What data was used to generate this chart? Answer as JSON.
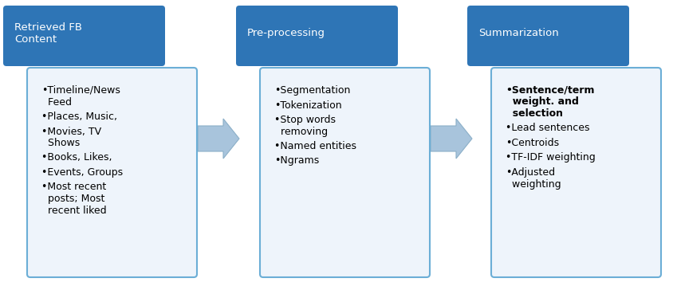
{
  "background_color": "#ffffff",
  "header_color": "#2E75B6",
  "header_text_color": "#ffffff",
  "body_bg_color": "#EEF4FB",
  "body_border_color": "#6BAED6",
  "body_text_color": "#000000",
  "arrow_color": "#A8C4DC",
  "figure_width": 8.45,
  "figure_height": 3.59,
  "boxes": [
    {
      "title": "Retrieved FB\nContent",
      "items": [
        [
          "•Timeline/News",
          "  Feed"
        ],
        [
          "•Places, Music,"
        ],
        [
          "•Movies, TV",
          "  Shows"
        ],
        [
          "•Books, Likes,"
        ],
        [
          "•Events, Groups"
        ],
        [
          "•Most recent",
          "  posts; Most",
          "  recent liked"
        ]
      ],
      "bold_indices": []
    },
    {
      "title": "Pre-processing",
      "items": [
        [
          "•Segmentation"
        ],
        [
          "•Tokenization"
        ],
        [
          "•Stop words",
          "  removing"
        ],
        [
          "•Named entities"
        ],
        [
          "•Ngrams"
        ]
      ],
      "bold_indices": []
    },
    {
      "title": "Summarization",
      "items": [
        [
          "•Sentence/term",
          "  weight. and",
          "  selection"
        ],
        [
          "•Lead sentences"
        ],
        [
          "•Centroids"
        ],
        [
          "•TF-IDF weighting"
        ],
        [
          "•Adjusted",
          "  weighting"
        ]
      ],
      "bold_indices": [
        0
      ]
    }
  ]
}
